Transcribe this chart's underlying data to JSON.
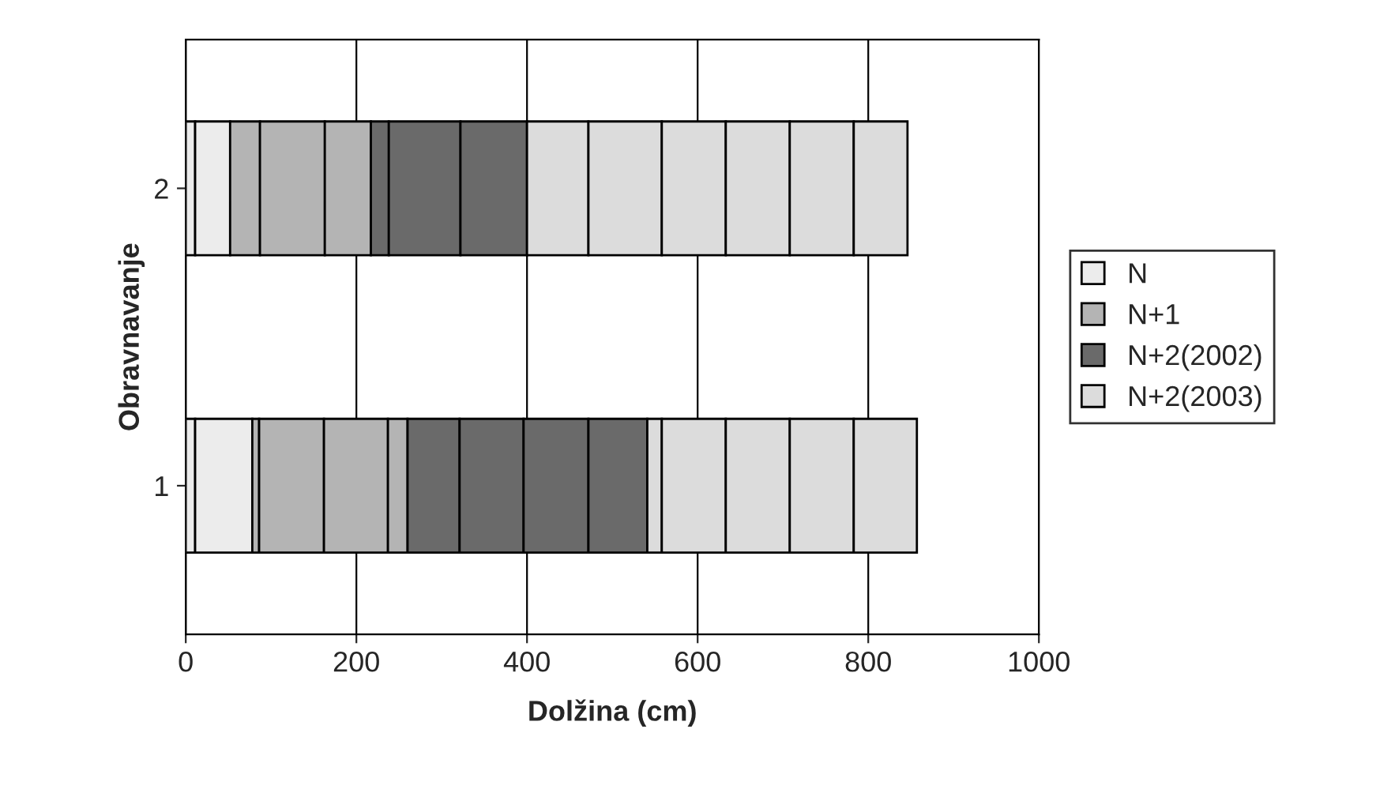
{
  "chart_data": {
    "type": "bar",
    "orientation": "horizontal",
    "stacked": true,
    "xlabel": "Dolžina (cm)",
    "ylabel": "Obravnavanje",
    "categories": [
      "2",
      "1"
    ],
    "xlim": [
      0,
      1000
    ],
    "xticks": [
      0,
      200,
      400,
      600,
      800,
      1000
    ],
    "grid": "x",
    "legend": "right",
    "series": [
      {
        "name": "N",
        "color": "#ececec",
        "values": [
          11,
          11
        ]
      },
      {
        "color": "#ececec",
        "values": [
          41,
          67
        ]
      },
      {
        "name": "N+1",
        "color": "#b4b4b4",
        "values": [
          35,
          8
        ]
      },
      {
        "color": "#b4b4b4",
        "values": [
          76,
          76
        ]
      },
      {
        "color": "#b4b4b4",
        "values": [
          54,
          75
        ]
      },
      {
        "color": "#b4b4b4",
        "values": [
          null,
          23
        ]
      },
      {
        "name": "N+2(2002)",
        "color": "#6a6a6a",
        "values": [
          21,
          61
        ]
      },
      {
        "color": "#6a6a6a",
        "values": [
          84,
          75
        ]
      },
      {
        "color": "#6a6a6a",
        "values": [
          78,
          76
        ]
      },
      {
        "color": "#6a6a6a",
        "values": [
          null,
          69
        ]
      },
      {
        "name": "N+2(2003)",
        "color": "#dcdcdc",
        "values": [
          72,
          17
        ]
      },
      {
        "color": "#dcdcdc",
        "values": [
          86,
          75
        ]
      },
      {
        "color": "#dcdcdc",
        "values": [
          75,
          75
        ]
      },
      {
        "color": "#dcdcdc",
        "values": [
          75,
          75
        ]
      },
      {
        "color": "#dcdcdc",
        "values": [
          75,
          74
        ]
      },
      {
        "color": "#dcdcdc",
        "values": [
          63,
          null
        ]
      }
    ]
  }
}
